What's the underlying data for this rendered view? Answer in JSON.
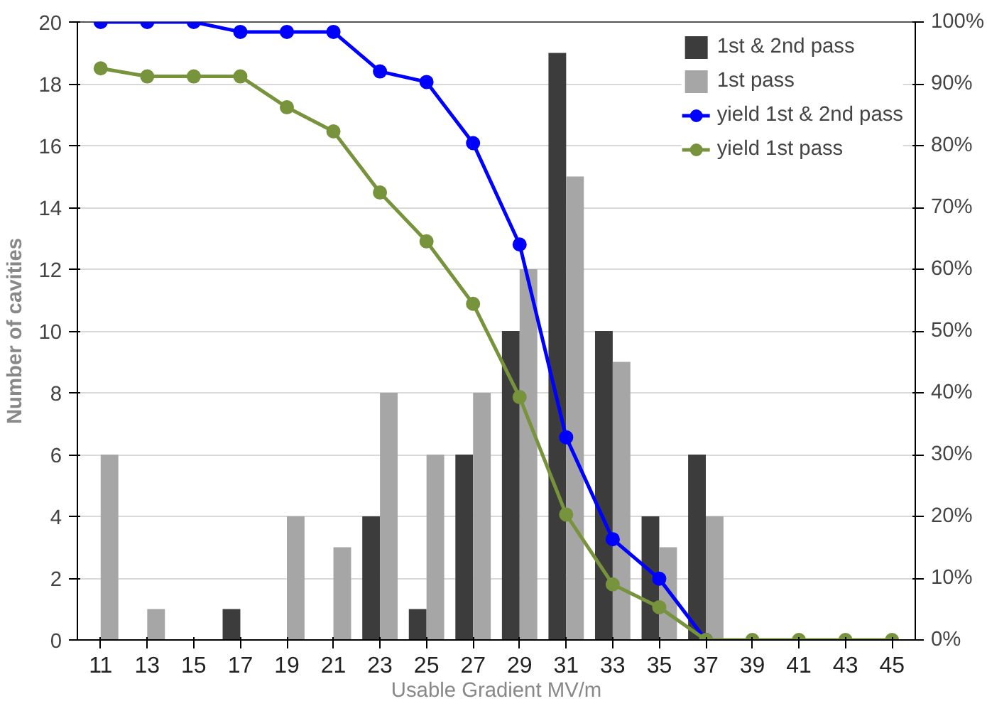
{
  "chart_data": {
    "type": "bar",
    "xlabel": "Usable Gradient MV/m",
    "ylabel": "Number of cavities",
    "categories": [
      "11",
      "13",
      "15",
      "17",
      "19",
      "21",
      "23",
      "25",
      "27",
      "29",
      "31",
      "33",
      "35",
      "37",
      "39",
      "41",
      "43",
      "45"
    ],
    "series": [
      {
        "name": "1st & 2nd pass",
        "color": "#3c3c3c",
        "values": [
          0,
          0,
          0,
          1,
          0,
          0,
          4,
          1,
          6,
          10,
          19,
          10,
          4,
          6,
          0,
          0,
          0,
          0
        ]
      },
      {
        "name": "1st pass",
        "color": "#a6a6a6",
        "values": [
          6,
          1,
          0,
          0,
          4,
          3,
          8,
          6,
          8,
          12,
          15,
          9,
          3,
          4,
          0,
          0,
          0,
          0
        ]
      },
      {
        "name": "yield 1st & 2nd pass",
        "type": "line",
        "axis": "y2",
        "color": "#0000ff",
        "marker": "circle",
        "values": [
          100,
          100,
          100,
          98.4,
          98.4,
          98.4,
          92,
          90.3,
          80.4,
          64,
          32.8,
          16.3,
          9.9,
          0,
          null,
          null,
          null,
          null
        ]
      },
      {
        "name": "yield 1st pass",
        "type": "line",
        "axis": "y2",
        "color": "#77933c",
        "marker": "circle",
        "values": [
          92.5,
          91.2,
          91.2,
          91.2,
          86.2,
          82.3,
          72.4,
          64.5,
          54.4,
          39.3,
          20.3,
          9,
          5.3,
          0,
          0,
          0,
          0,
          0
        ]
      }
    ],
    "ylim": [
      0,
      20
    ],
    "yticks": [
      0,
      2,
      4,
      6,
      8,
      10,
      12,
      14,
      16,
      18,
      20
    ],
    "y2lim": [
      0,
      100
    ],
    "y2ticks": [
      {
        "value": 0,
        "label": "0%"
      },
      {
        "value": 10,
        "label": "10%"
      },
      {
        "value": 20,
        "label": "20%"
      },
      {
        "value": 30,
        "label": "30%"
      },
      {
        "value": 40,
        "label": "40%"
      },
      {
        "value": 50,
        "label": "50%"
      },
      {
        "value": 60,
        "label": "60%"
      },
      {
        "value": 70,
        "label": "70%"
      },
      {
        "value": 80,
        "label": "80%"
      },
      {
        "value": 90,
        "label": "90%"
      },
      {
        "value": 100,
        "label": "100%"
      }
    ],
    "grid": "y",
    "legend": "top right"
  }
}
